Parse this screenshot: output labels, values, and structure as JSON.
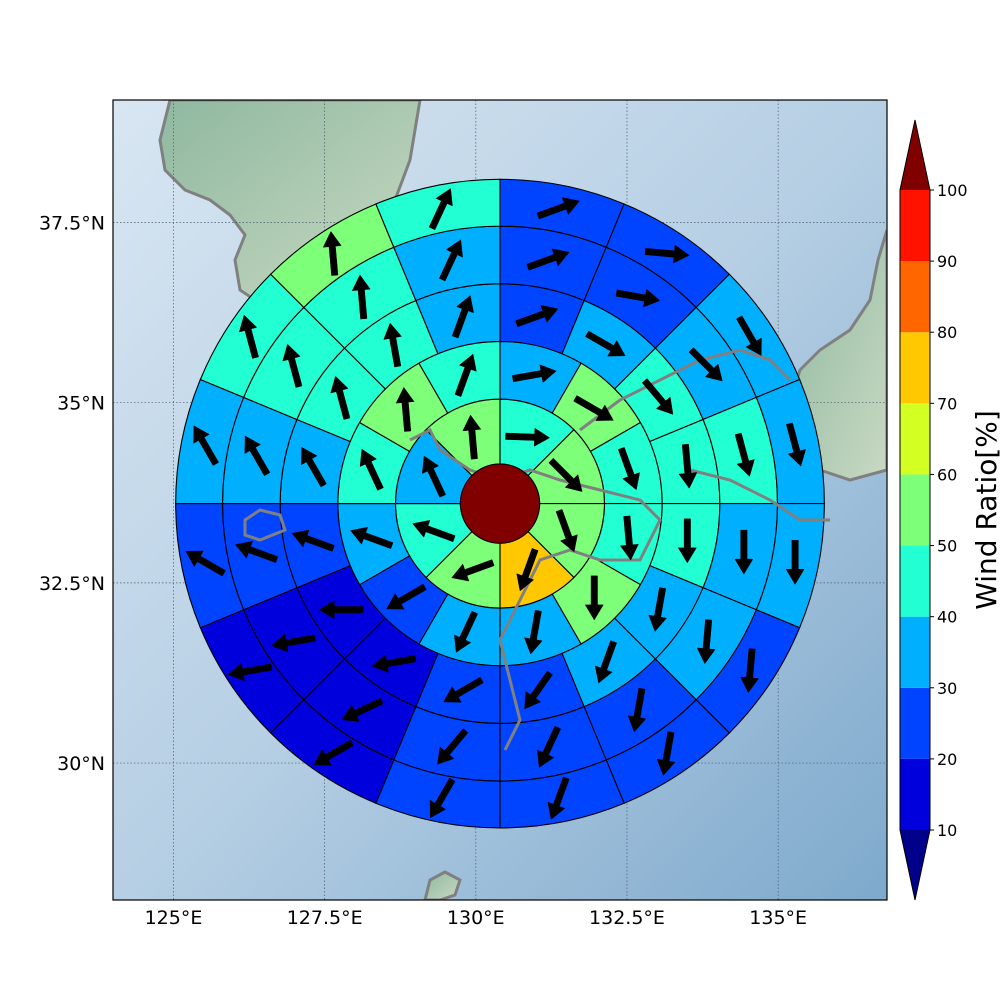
{
  "chart_data": {
    "type": "polar-sector map",
    "colorbar": {
      "label": "Wind Ratio[%]",
      "ticks": [
        10,
        20,
        30,
        40,
        50,
        60,
        70,
        80,
        90,
        100
      ],
      "tick_labels": [
        "10",
        "20",
        "30",
        "40",
        "50",
        "60",
        "70",
        "80",
        "90",
        "100"
      ],
      "levels": [
        10,
        20,
        30,
        40,
        50,
        60,
        70,
        80,
        90,
        100
      ],
      "colors": [
        "#0000dd",
        "#0044ff",
        "#00b0ff",
        "#22ffd2",
        "#7dff7a",
        "#d4ff22",
        "#ffc800",
        "#ff6600",
        "#ff1200"
      ],
      "under_color": "#00008b",
      "over_color": "#800000"
    },
    "axes": {
      "x_ticks": [
        125,
        127.5,
        130,
        132.5,
        135
      ],
      "x_tick_labels": [
        "125°E",
        "127.5°E",
        "130°E",
        "132.5°E",
        "135°E"
      ],
      "y_ticks": [
        30,
        32.5,
        35,
        37.5
      ],
      "y_tick_labels": [
        "30°N",
        "32.5°N",
        "35°N",
        "37.5°N"
      ],
      "xlim": [
        124,
        136.8
      ],
      "ylim": [
        28.1,
        39.2
      ],
      "grid": true
    },
    "center": {
      "lon": 130.4,
      "lat": 33.6,
      "value": 100
    },
    "ring_edges_deg": [
      0.55,
      1.45,
      2.25,
      3.05,
      3.85,
      4.5
    ],
    "rings": [
      {
        "sectors": 8,
        "values": [
          45,
          50,
          50,
          75,
          55,
          45,
          35,
          55
        ],
        "wind_dir": [
          92,
          135,
          160,
          200,
          250,
          290,
          335,
          355
        ]
      },
      {
        "sectors": 12,
        "values": [
          35,
          55,
          45,
          45,
          55,
          35,
          35,
          25,
          35,
          45,
          55,
          45
        ],
        "wind_dir": [
          80,
          120,
          160,
          175,
          180,
          190,
          205,
          240,
          290,
          335,
          355,
          20
        ]
      },
      {
        "sectors": 16,
        "values": [
          25,
          35,
          45,
          45,
          45,
          35,
          35,
          25,
          25,
          15,
          15,
          25,
          35,
          45,
          45,
          35
        ],
        "wind_dir": [
          70,
          120,
          140,
          175,
          180,
          190,
          200,
          215,
          240,
          260,
          270,
          290,
          330,
          345,
          350,
          20
        ]
      },
      {
        "sectors": 16,
        "values": [
          25,
          25,
          35,
          45,
          35,
          35,
          25,
          25,
          25,
          15,
          15,
          25,
          35,
          45,
          45,
          35
        ],
        "wind_dir": [
          70,
          100,
          135,
          165,
          180,
          185,
          190,
          205,
          220,
          245,
          260,
          290,
          330,
          345,
          355,
          25
        ]
      },
      {
        "sectors": 16,
        "values": [
          25,
          25,
          35,
          35,
          35,
          25,
          25,
          25,
          25,
          15,
          15,
          25,
          35,
          45,
          55,
          45
        ],
        "wind_dir": [
          70,
          95,
          150,
          165,
          180,
          185,
          190,
          200,
          210,
          240,
          260,
          300,
          330,
          345,
          355,
          25
        ]
      },
      {
        "sectors": 16,
        "values": [
          25,
          25,
          35,
          35,
          35,
          25,
          25,
          25,
          15,
          15,
          15,
          25,
          35,
          45,
          45,
          35
        ],
        "wind_dir": [
          70,
          100,
          150,
          170,
          180,
          185,
          190,
          200,
          215,
          240,
          260,
          300,
          330,
          345,
          355,
          25
        ]
      }
    ]
  }
}
